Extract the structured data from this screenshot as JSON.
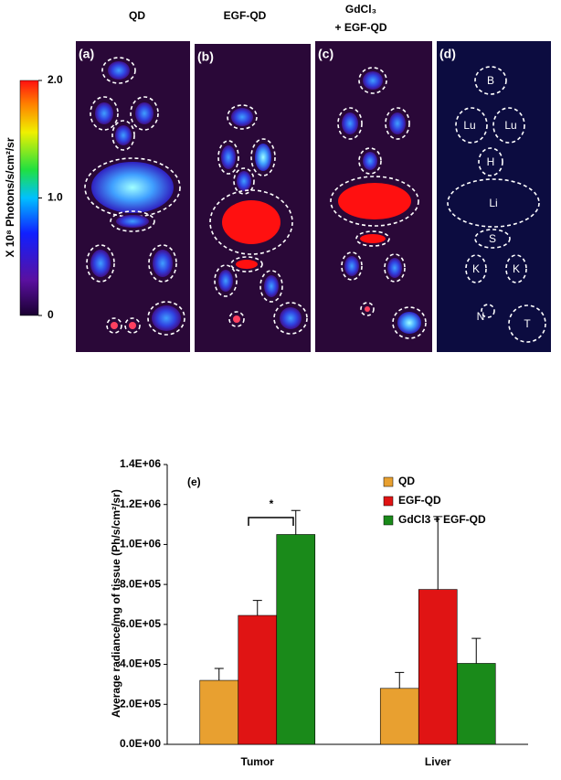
{
  "image_panel": {
    "column_titles": [
      "QD",
      "EGF-QD",
      "GdCl₃",
      "+ EGF-QD"
    ],
    "panel_labels": [
      "(a)",
      "(b)",
      "(c)",
      "(d)"
    ],
    "organ_labels": [
      "B",
      "Lu",
      "Lu",
      "H",
      "Li",
      "S",
      "K",
      "K",
      "N",
      "T"
    ],
    "colorbar": {
      "label": "X 10⁸ Photons/s/cm²/sr",
      "lim": [
        0,
        2
      ],
      "ticks": [
        {
          "value": 0,
          "label": "0"
        },
        {
          "value": 1,
          "label": "1.0"
        },
        {
          "value": 2,
          "label": "2.0"
        }
      ]
    }
  },
  "chart_data": {
    "type": "bar",
    "annotation": "(e)",
    "significance": "*",
    "y_label": "Average radiance/mg of tissue (Ph/s/cm²/sr)",
    "categories": [
      "Tumor",
      "Liver"
    ],
    "series": [
      {
        "name": "QD",
        "color": "#e8a030",
        "values": [
          320000,
          280000
        ],
        "errors": [
          60000,
          80000
        ]
      },
      {
        "name": "EGF-QD",
        "color": "#e01414",
        "values": [
          645000,
          775000
        ],
        "errors": [
          75000,
          365000
        ]
      },
      {
        "name": "GdCl3 + EGF-QD",
        "color": "#1a8a1a",
        "values": [
          1050000,
          405000
        ],
        "errors": [
          120000,
          125000
        ]
      }
    ],
    "ylim": [
      0,
      1400000
    ],
    "yticks": [
      {
        "value": 0,
        "label": "0.0E+00"
      },
      {
        "value": 200000,
        "label": "2.0E+05"
      },
      {
        "value": 400000,
        "label": "4.0E+05"
      },
      {
        "value": 600000,
        "label": "6.0E+05"
      },
      {
        "value": 800000,
        "label": "8.0E+05"
      },
      {
        "value": 1000000,
        "label": "1.0E+06"
      },
      {
        "value": 1200000,
        "label": "1.2E+06"
      },
      {
        "value": 1400000,
        "label": "1.4E+06"
      }
    ],
    "legend": "top-right"
  }
}
